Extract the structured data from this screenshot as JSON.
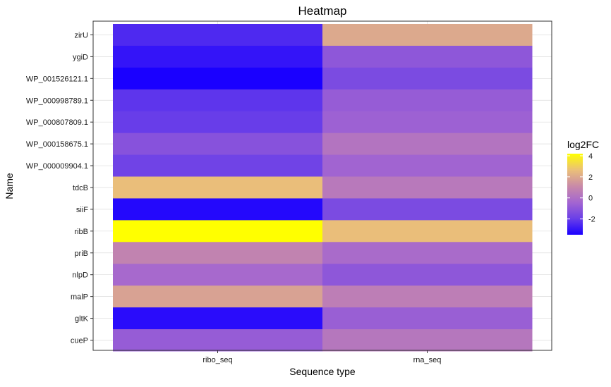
{
  "chart_data": {
    "type": "heatmap",
    "title": "Heatmap",
    "xlabel": "Sequence type",
    "ylabel": "Name",
    "x_categories": [
      "ribo_seq",
      "rna_seq"
    ],
    "y_categories": [
      "zirU",
      "ygiD",
      "WP_001526121.1",
      "WP_000998789.1",
      "WP_000807809.1",
      "WP_000158675.1",
      "WP_000009904.1",
      "tdcB",
      "siiF",
      "ribB",
      "priB",
      "nlpD",
      "malP",
      "gltK",
      "cueP"
    ],
    "values": [
      [
        -2.5,
        2.0
      ],
      [
        -3.0,
        -1.0
      ],
      [
        -3.5,
        -1.5
      ],
      [
        -2.2,
        -0.8
      ],
      [
        -2.0,
        -0.6
      ],
      [
        -1.2,
        0.2
      ],
      [
        -1.8,
        -0.5
      ],
      [
        2.6,
        0.4
      ],
      [
        -3.3,
        -1.5
      ],
      [
        4.2,
        2.6
      ],
      [
        0.8,
        -0.2
      ],
      [
        -0.3,
        -1.0
      ],
      [
        1.8,
        0.6
      ],
      [
        -3.2,
        -0.7
      ],
      [
        -0.8,
        0.3
      ]
    ],
    "legend": {
      "title": "log2FC",
      "ticks": [
        4,
        2,
        0,
        -2
      ],
      "range": [
        -3.5,
        4.2
      ],
      "colors": {
        "low": "#0000ff",
        "mid": "#b366cc",
        "high": "#ffff00"
      }
    },
    "grid": true,
    "legend_position": "right"
  }
}
